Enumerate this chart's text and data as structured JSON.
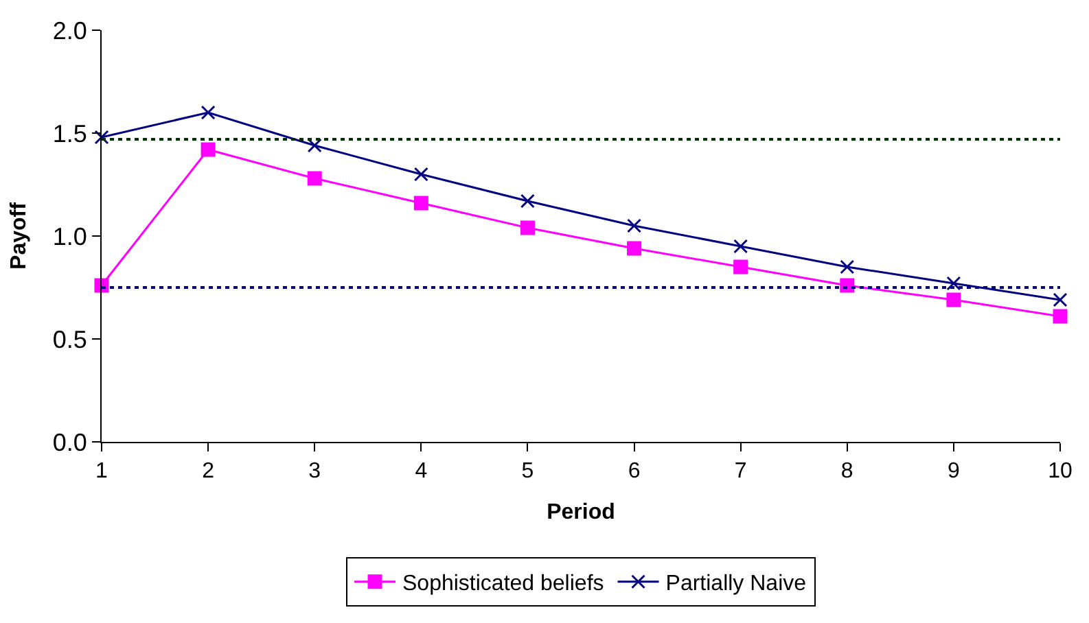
{
  "chart_data": {
    "type": "line",
    "xlabel": "Period",
    "ylabel": "Payoff",
    "x": [
      1,
      2,
      3,
      4,
      5,
      6,
      7,
      8,
      9,
      10
    ],
    "xlim": [
      1,
      10
    ],
    "xticks": [
      1,
      2,
      3,
      4,
      5,
      6,
      7,
      8,
      9,
      10
    ],
    "ylim": [
      0,
      2
    ],
    "yticks": [
      {
        "value": 0,
        "label": "0.0"
      },
      {
        "value": 0.5,
        "label": "0.5"
      },
      {
        "value": 1,
        "label": "1.0"
      },
      {
        "value": 1.5,
        "label": "1.5"
      },
      {
        "value": 2,
        "label": "2.0"
      }
    ],
    "series": [
      {
        "name": "Sophisticated beliefs",
        "color": "#ff00ff",
        "marker": "square",
        "values": [
          0.76,
          1.42,
          1.28,
          1.16,
          1.04,
          0.94,
          0.85,
          0.76,
          0.69,
          0.61
        ]
      },
      {
        "name": "Partially Naive",
        "color": "#000080",
        "marker": "cross",
        "values": [
          1.48,
          1.6,
          1.44,
          1.3,
          1.17,
          1.05,
          0.95,
          0.85,
          0.77,
          0.69
        ]
      }
    ],
    "ref_lines": [
      {
        "axis": "y",
        "value": 1.47,
        "color": "#003300",
        "line_style": "dotted"
      },
      {
        "axis": "y",
        "value": 0.75,
        "color": "#000080",
        "line_style": "dotted"
      }
    ],
    "legend": "bottom"
  }
}
